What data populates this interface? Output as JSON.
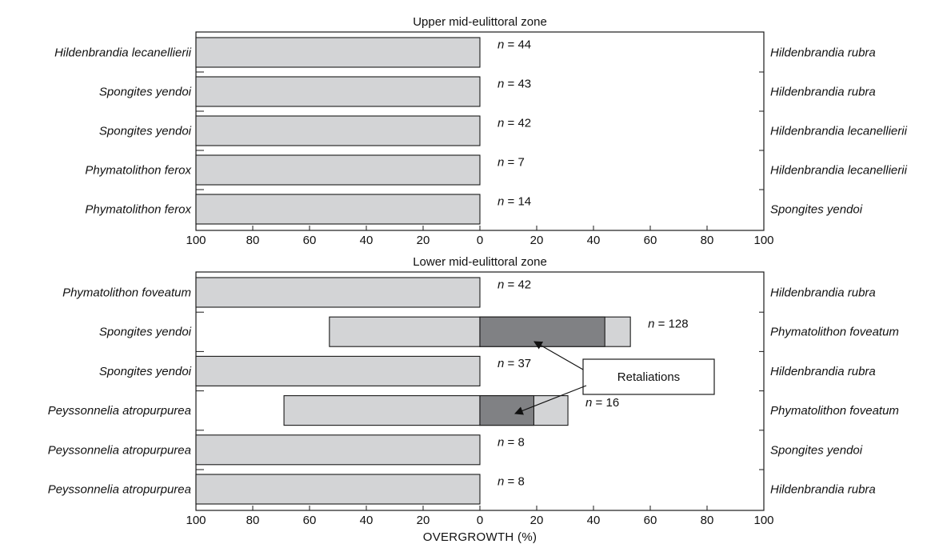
{
  "chart_data": [
    {
      "type": "bar",
      "orientation": "horizontal",
      "title": "Upper mid-eulittoral zone",
      "xlim": [
        -100,
        100
      ],
      "xticks": [
        "100",
        "80",
        "60",
        "40",
        "20",
        "0",
        "20",
        "40",
        "60",
        "80",
        "100"
      ],
      "rows": [
        {
          "left_species": "Hildenbrandia lecanellierii",
          "right_species": "Hildenbrandia rubra",
          "left_value": 100,
          "right_value": 0,
          "retaliation": 0,
          "n": "44"
        },
        {
          "left_species": "Spongites yendoi",
          "right_species": "Hildenbrandia rubra",
          "left_value": 100,
          "right_value": 0,
          "retaliation": 0,
          "n": "43"
        },
        {
          "left_species": "Spongites yendoi",
          "right_species": "Hildenbrandia lecanellierii",
          "left_value": 100,
          "right_value": 0,
          "retaliation": 0,
          "n": "42"
        },
        {
          "left_species": "Phymatolithon ferox",
          "right_species": "Hildenbrandia lecanellierii",
          "left_value": 100,
          "right_value": 0,
          "retaliation": 0,
          "n": "7"
        },
        {
          "left_species": "Phymatolithon ferox",
          "right_species": "Spongites yendoi",
          "left_value": 100,
          "right_value": 0,
          "retaliation": 0,
          "n": "14"
        }
      ]
    },
    {
      "type": "bar",
      "orientation": "horizontal",
      "title": "Lower mid-eulittoral zone",
      "xlim": [
        -100,
        100
      ],
      "xticks": [
        "100",
        "80",
        "60",
        "40",
        "20",
        "0",
        "20",
        "40",
        "60",
        "80",
        "100"
      ],
      "xlabel": "OVERGROWTH (%)",
      "annotation": "Retaliations",
      "rows": [
        {
          "left_species": "Phymatolithon foveatum",
          "right_species": "Hildenbrandia rubra",
          "left_value": 100,
          "right_value": 0,
          "retaliation": 0,
          "n": "42"
        },
        {
          "left_species": "Spongites yendoi",
          "right_species": "Phymatolithon foveatum",
          "left_value": 53,
          "right_value": 53,
          "retaliation": 44,
          "n": "128"
        },
        {
          "left_species": "Spongites yendoi",
          "right_species": "Hildenbrandia rubra",
          "left_value": 100,
          "right_value": 0,
          "retaliation": 0,
          "n": "37"
        },
        {
          "left_species": "Peyssonnelia atropurpurea",
          "right_species": "Phymatolithon foveatum",
          "left_value": 69,
          "right_value": 31,
          "retaliation": 19,
          "n": "16"
        },
        {
          "left_species": "Peyssonnelia atropurpurea",
          "right_species": "Spongites yendoi",
          "left_value": 100,
          "right_value": 0,
          "retaliation": 0,
          "n": "8"
        },
        {
          "left_species": "Peyssonnelia atropurpurea",
          "right_species": "Hildenbrandia rubra",
          "left_value": 100,
          "right_value": 0,
          "retaliation": 0,
          "n": "8"
        }
      ]
    }
  ],
  "colors": {
    "bar_fill": "#d3d4d6",
    "retaliation_fill": "#808184",
    "stroke": "#1a1a1a"
  },
  "n_prefix": "n"
}
